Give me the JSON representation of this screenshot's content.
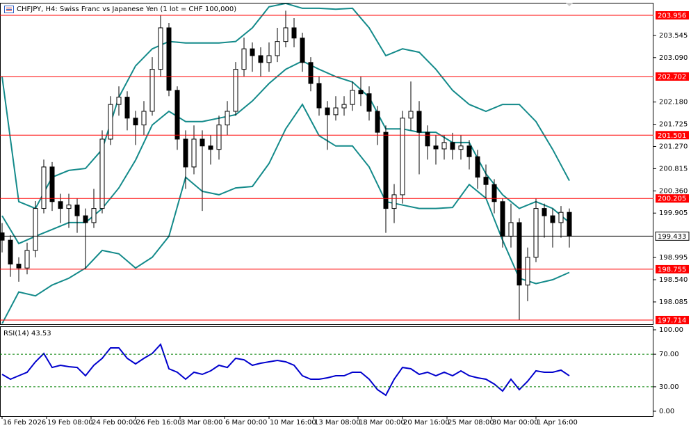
{
  "chart_data": [
    {
      "type": "candlestick",
      "title": "CHFJPY, H4:  Swiss Franc vs Japanese Yen (1 lot = CHF 100,000)",
      "xlim": [
        -0.75,
        234.25
      ],
      "ylim": [
        197.628,
        204.213
      ],
      "yticks": [
        203.545,
        {
          "value": 203.09,
          "label": "203.090"
        },
        {
          "value": 202.18,
          "label": "202.180"
        },
        201.725,
        {
          "value": 201.27,
          "label": "201.270"
        },
        200.815,
        {
          "value": 200.36,
          "label": "200.360"
        },
        199.905,
        198.995,
        {
          "value": 198.54,
          "label": "198.540"
        },
        198.085
      ],
      "xticks": [
        {
          "value": 0,
          "label": "16 Feb 2026"
        },
        {
          "value": 16,
          "label": "19 Feb 08:00"
        },
        {
          "value": 32,
          "label": "24 Feb 00:00"
        },
        {
          "value": 48,
          "label": "26 Feb 16:00"
        },
        {
          "value": 64,
          "label": "3 Mar 08:00"
        },
        {
          "value": 80,
          "label": "6 Mar 00:00"
        },
        {
          "value": 96,
          "label": "10 Mar 16:00"
        },
        {
          "value": 112,
          "label": "13 Mar 08:00"
        },
        {
          "value": 128,
          "label": "18 Mar 00:00"
        },
        {
          "value": 144,
          "label": "20 Mar 16:00"
        },
        {
          "value": 160,
          "label": "25 Mar 08:00"
        },
        {
          "value": 176,
          "label": "30 Mar 00:00"
        },
        {
          "value": 192,
          "label": "1 Apr 16:00"
        }
      ],
      "x": [
        0,
        3,
        6,
        9,
        12,
        15,
        18,
        21,
        24,
        27,
        30,
        33,
        36,
        39,
        42,
        45,
        48,
        51,
        54,
        57,
        60,
        63,
        66,
        69,
        72,
        75,
        78,
        81,
        84,
        87,
        90,
        93,
        96,
        99,
        102,
        105,
        108,
        111,
        114,
        117,
        120,
        123,
        126,
        129,
        132,
        135,
        138,
        141,
        144,
        147,
        150,
        153,
        156,
        159,
        162,
        165,
        168,
        171,
        174,
        177,
        180,
        183,
        186,
        189,
        192,
        195,
        198,
        201,
        204
      ],
      "open": [
        199.5,
        199.35,
        198.86,
        198.78,
        199.14,
        200.0,
        200.85,
        200.14,
        200.0,
        200.07,
        199.85,
        199.71,
        200.0,
        201.42,
        202.13,
        202.28,
        201.85,
        201.71,
        201.99,
        202.85,
        203.7,
        202.42,
        201.42,
        200.85,
        201.42,
        201.28,
        201.21,
        201.71,
        201.99,
        202.85,
        203.27,
        203.13,
        202.99,
        203.13,
        203.42,
        203.7,
        203.49,
        202.99,
        202.56,
        202.06,
        201.92,
        202.06,
        202.13,
        202.42,
        202.35,
        201.99,
        201.56,
        200.0,
        200.28,
        201.85,
        201.99,
        201.56,
        201.28,
        201.22,
        201.35,
        201.21,
        201.28,
        201.06,
        200.64,
        200.49,
        200.14,
        199.43,
        199.71,
        198.43,
        199.0,
        200.0,
        199.85,
        199.71,
        199.92
      ],
      "high": [
        199.7,
        199.45,
        199.0,
        199.3,
        200.15,
        201.0,
        200.95,
        200.3,
        200.3,
        200.2,
        200.0,
        200.4,
        201.6,
        202.3,
        202.5,
        202.4,
        202.0,
        202.2,
        203.1,
        203.95,
        203.8,
        202.5,
        201.6,
        201.7,
        201.6,
        201.5,
        201.9,
        202.2,
        203.0,
        203.5,
        203.4,
        203.3,
        203.4,
        203.7,
        204.05,
        203.9,
        203.6,
        203.1,
        202.7,
        202.2,
        202.3,
        202.3,
        202.6,
        202.7,
        202.5,
        202.1,
        201.7,
        200.5,
        202.0,
        202.6,
        202.2,
        201.7,
        201.5,
        201.5,
        201.55,
        201.5,
        201.4,
        201.2,
        200.9,
        200.6,
        200.2,
        200.1,
        199.8,
        199.2,
        200.2,
        200.1,
        200.0,
        200.05,
        200.0
      ],
      "low": [
        199.1,
        198.6,
        198.5,
        198.65,
        199.0,
        199.9,
        199.95,
        199.7,
        199.6,
        199.5,
        198.75,
        199.6,
        199.9,
        201.3,
        201.9,
        201.6,
        201.3,
        201.5,
        201.9,
        202.7,
        202.3,
        201.2,
        200.4,
        200.7,
        199.95,
        200.9,
        201.0,
        201.5,
        201.9,
        202.7,
        202.8,
        202.7,
        202.8,
        203.0,
        203.3,
        203.3,
        202.8,
        202.4,
        201.9,
        201.2,
        201.8,
        201.9,
        202.0,
        202.1,
        201.8,
        201.3,
        199.5,
        199.7,
        200.1,
        201.6,
        200.7,
        201.0,
        200.9,
        201.0,
        201.0,
        201.0,
        200.8,
        200.4,
        200.2,
        199.9,
        199.2,
        199.2,
        197.71,
        198.1,
        198.9,
        199.4,
        199.2,
        199.4,
        199.2
      ],
      "close": [
        199.35,
        198.86,
        198.78,
        199.14,
        200.0,
        200.85,
        200.14,
        200.0,
        200.07,
        199.85,
        199.71,
        200.0,
        201.42,
        202.13,
        202.28,
        201.85,
        201.71,
        201.99,
        202.85,
        203.7,
        202.42,
        201.42,
        200.85,
        201.42,
        201.28,
        201.21,
        201.71,
        201.99,
        202.85,
        203.27,
        203.13,
        202.99,
        203.13,
        203.42,
        203.7,
        203.49,
        202.99,
        202.56,
        202.06,
        201.92,
        202.06,
        202.13,
        202.42,
        202.35,
        201.99,
        201.56,
        200.0,
        200.28,
        201.85,
        201.99,
        201.56,
        201.28,
        201.22,
        201.35,
        201.21,
        201.28,
        201.06,
        200.64,
        200.49,
        200.14,
        199.43,
        199.71,
        198.43,
        199.0,
        200.0,
        199.85,
        199.71,
        199.92,
        199.433
      ],
      "candle_color": "#000000",
      "bands": {
        "color": "#138a8a",
        "x": [
          0,
          6,
          12,
          18,
          24,
          30,
          36,
          42,
          48,
          54,
          60,
          66,
          72,
          78,
          84,
          90,
          96,
          102,
          108,
          114,
          120,
          126,
          132,
          138,
          144,
          150,
          156,
          162,
          168,
          174,
          180,
          186,
          192,
          198,
          204
        ],
        "upper": [
          202.7,
          200.14,
          200.0,
          200.64,
          200.78,
          200.82,
          201.21,
          202.28,
          202.92,
          203.27,
          203.42,
          203.39,
          203.39,
          203.39,
          203.42,
          203.7,
          204.13,
          204.2,
          204.1,
          204.1,
          204.08,
          204.1,
          203.7,
          203.13,
          203.27,
          203.2,
          202.85,
          202.42,
          202.13,
          201.99,
          202.13,
          202.13,
          201.78,
          201.21,
          200.57
        ],
        "middle": [
          199.85,
          199.28,
          199.43,
          199.57,
          199.71,
          199.71,
          200.0,
          200.42,
          200.99,
          201.71,
          201.99,
          201.78,
          201.78,
          201.85,
          201.92,
          202.2,
          202.56,
          202.85,
          203.02,
          202.85,
          202.7,
          202.59,
          202.28,
          201.63,
          201.63,
          201.56,
          201.56,
          201.35,
          201.35,
          200.71,
          200.28,
          200.0,
          200.14,
          200.0,
          199.71
        ],
        "lower": [
          197.64,
          198.29,
          198.21,
          198.43,
          198.57,
          198.78,
          199.14,
          199.07,
          198.78,
          199.0,
          199.43,
          200.64,
          200.35,
          200.28,
          200.42,
          200.45,
          200.92,
          201.63,
          202.13,
          201.49,
          201.28,
          201.28,
          200.85,
          200.14,
          200.07,
          200.0,
          200.0,
          200.02,
          200.49,
          200.21,
          199.35,
          198.57,
          198.46,
          198.54,
          198.69
        ]
      },
      "levels": [
        203.956,
        202.702,
        201.501,
        200.205,
        198.755,
        197.714
      ],
      "level_color": "#ff0000",
      "last_price": 199.433
    },
    {
      "type": "line",
      "title": "RSI(14) 43.53",
      "xlim": [
        -0.75,
        234.25
      ],
      "ylim": [
        -5.98,
        103.42
      ],
      "yticks": [
        {
          "value": 100,
          "label": "100.00"
        },
        {
          "value": 70,
          "label": "70.00"
        },
        {
          "value": 30,
          "label": "30.00"
        },
        {
          "value": 0,
          "label": "0.00"
        }
      ],
      "levels": [
        70,
        30
      ],
      "level_color": "#008000",
      "color": "#0000cd",
      "x": [
        0,
        3,
        6,
        9,
        12,
        15,
        18,
        21,
        24,
        27,
        30,
        33,
        36,
        39,
        42,
        45,
        48,
        51,
        54,
        57,
        60,
        63,
        66,
        69,
        72,
        75,
        78,
        81,
        84,
        87,
        90,
        93,
        96,
        99,
        102,
        105,
        108,
        111,
        114,
        117,
        120,
        123,
        126,
        129,
        132,
        135,
        138,
        141,
        144,
        147,
        150,
        153,
        156,
        159,
        162,
        165,
        168,
        171,
        174,
        177,
        180,
        183,
        186,
        189,
        192,
        195,
        198,
        201,
        204
      ],
      "values": [
        45.3,
        39.3,
        43.6,
        47.9,
        60.7,
        70.9,
        53.8,
        56.4,
        54.7,
        53.8,
        43.6,
        56.4,
        65.0,
        77.8,
        77.8,
        65.0,
        58.1,
        65.0,
        70.9,
        82.1,
        52.1,
        47.9,
        39.3,
        47.9,
        45.3,
        49.6,
        56.4,
        53.8,
        65.0,
        63.2,
        56.4,
        59.0,
        60.7,
        62.4,
        60.7,
        56.4,
        43.6,
        39.3,
        39.3,
        41.0,
        43.6,
        43.6,
        47.9,
        47.9,
        39.3,
        26.5,
        19.7,
        39.3,
        53.8,
        52.1,
        45.3,
        47.9,
        43.6,
        47.9,
        43.6,
        49.6,
        43.6,
        41.0,
        39.3,
        33.3,
        24.8,
        39.3,
        26.5,
        36.8,
        49.6,
        47.9,
        47.9,
        50.4,
        43.53
      ]
    }
  ]
}
